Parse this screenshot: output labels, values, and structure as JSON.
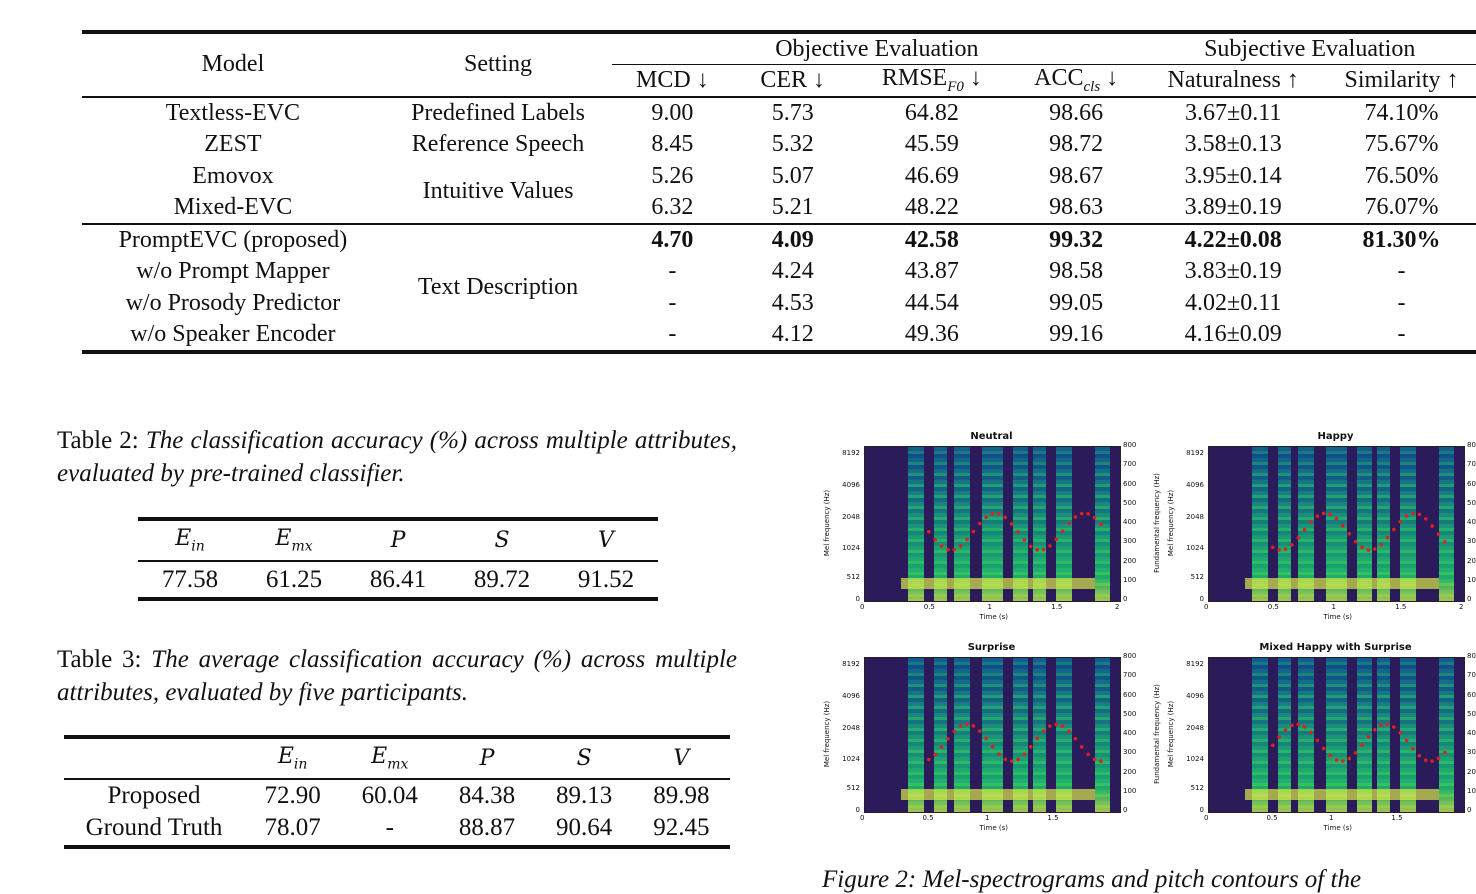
{
  "table1": {
    "header": {
      "model": "Model",
      "setting": "Setting",
      "objective": "Objective Evaluation",
      "subjective": "Subjective Evaluation",
      "cols": [
        "MCD ↓",
        "CER ↓",
        "RMSE",
        "ACC",
        "Naturalness ↑",
        "Similarity ↑"
      ],
      "rmse_sub": "F0",
      "acc_sub": "cls",
      "arrow_down": "↓"
    },
    "rows": [
      {
        "model": "Textless-EVC",
        "setting": "Predefined Labels",
        "v": [
          "9.00",
          "5.73",
          "64.82",
          "98.66",
          "3.67±0.11",
          "74.10%"
        ]
      },
      {
        "model": "ZEST",
        "setting": "Reference Speech",
        "v": [
          "8.45",
          "5.32",
          "45.59",
          "98.72",
          "3.58±0.13",
          "75.67%"
        ]
      },
      {
        "model": "Emovox",
        "setting": "Intuitive Values",
        "v": [
          "5.26",
          "5.07",
          "46.69",
          "98.67",
          "3.95±0.14",
          "76.50%"
        ]
      },
      {
        "model": "Mixed-EVC",
        "setting": "",
        "v": [
          "6.32",
          "5.21",
          "48.22",
          "98.63",
          "3.89±0.19",
          "76.07%"
        ]
      },
      {
        "model": "PromptEVC (proposed)",
        "setting": "Text Description",
        "v": [
          "4.70",
          "4.09",
          "42.58",
          "99.32",
          "4.22±0.08",
          "81.30%"
        ]
      },
      {
        "model": "w/o Prompt Mapper",
        "setting": "",
        "v": [
          "-",
          "4.24",
          "43.87",
          "98.58",
          "3.83±0.19",
          "-"
        ]
      },
      {
        "model": "w/o Prosody Predictor",
        "setting": "",
        "v": [
          "-",
          "4.53",
          "44.54",
          "99.05",
          "4.02±0.11",
          "-"
        ]
      },
      {
        "model": "w/o Speaker Encoder",
        "setting": "",
        "v": [
          "-",
          "4.12",
          "49.36",
          "99.16",
          "4.16±0.09",
          "-"
        ]
      }
    ]
  },
  "table2": {
    "caption_label": "Table 2:",
    "caption_text": "The classification accuracy (%) across multiple attributes, evaluated by pre-trained classifier.",
    "headers": [
      "E",
      "E",
      "P",
      "S",
      "V"
    ],
    "header_subs": [
      "in",
      "mx",
      "",
      "",
      ""
    ],
    "values": [
      "77.58",
      "61.25",
      "86.41",
      "89.72",
      "91.52"
    ]
  },
  "table3": {
    "caption_label": "Table 3:",
    "caption_text": "The average classification accuracy (%) across multiple attributes, evaluated by five participants.",
    "headers": [
      "E",
      "E",
      "P",
      "S",
      "V"
    ],
    "header_subs": [
      "in",
      "mx",
      "",
      "",
      ""
    ],
    "rows": [
      {
        "label": "Proposed",
        "v": [
          "72.90",
          "60.04",
          "84.38",
          "89.13",
          "89.98"
        ]
      },
      {
        "label": "Ground Truth",
        "v": [
          "78.07",
          "-",
          "88.87",
          "90.64",
          "92.45"
        ]
      }
    ]
  },
  "figure": {
    "panels": [
      {
        "title": "Neutral"
      },
      {
        "title": "Happy"
      },
      {
        "title": "Surprise"
      },
      {
        "title": "Mixed Happy with Surprise"
      }
    ],
    "y_ticks": [
      "8192",
      "4096",
      "2048",
      "1024",
      "512",
      "0"
    ],
    "y2_ticks": [
      "800",
      "700",
      "600",
      "500",
      "400",
      "300",
      "200",
      "100",
      "0"
    ],
    "x_ticks_a": [
      "0",
      "0.5",
      "1",
      "1.5",
      "2"
    ],
    "x_ticks_b": [
      "0",
      "0.5",
      "1",
      "1.5"
    ],
    "ylabel": "Mel frequency (Hz)",
    "y2label": "Fundamental frequency (Hz)",
    "xlabel": "Time (s)",
    "caption_partial": "Figure 2: Mel-spectrograms and pitch contours of the"
  }
}
